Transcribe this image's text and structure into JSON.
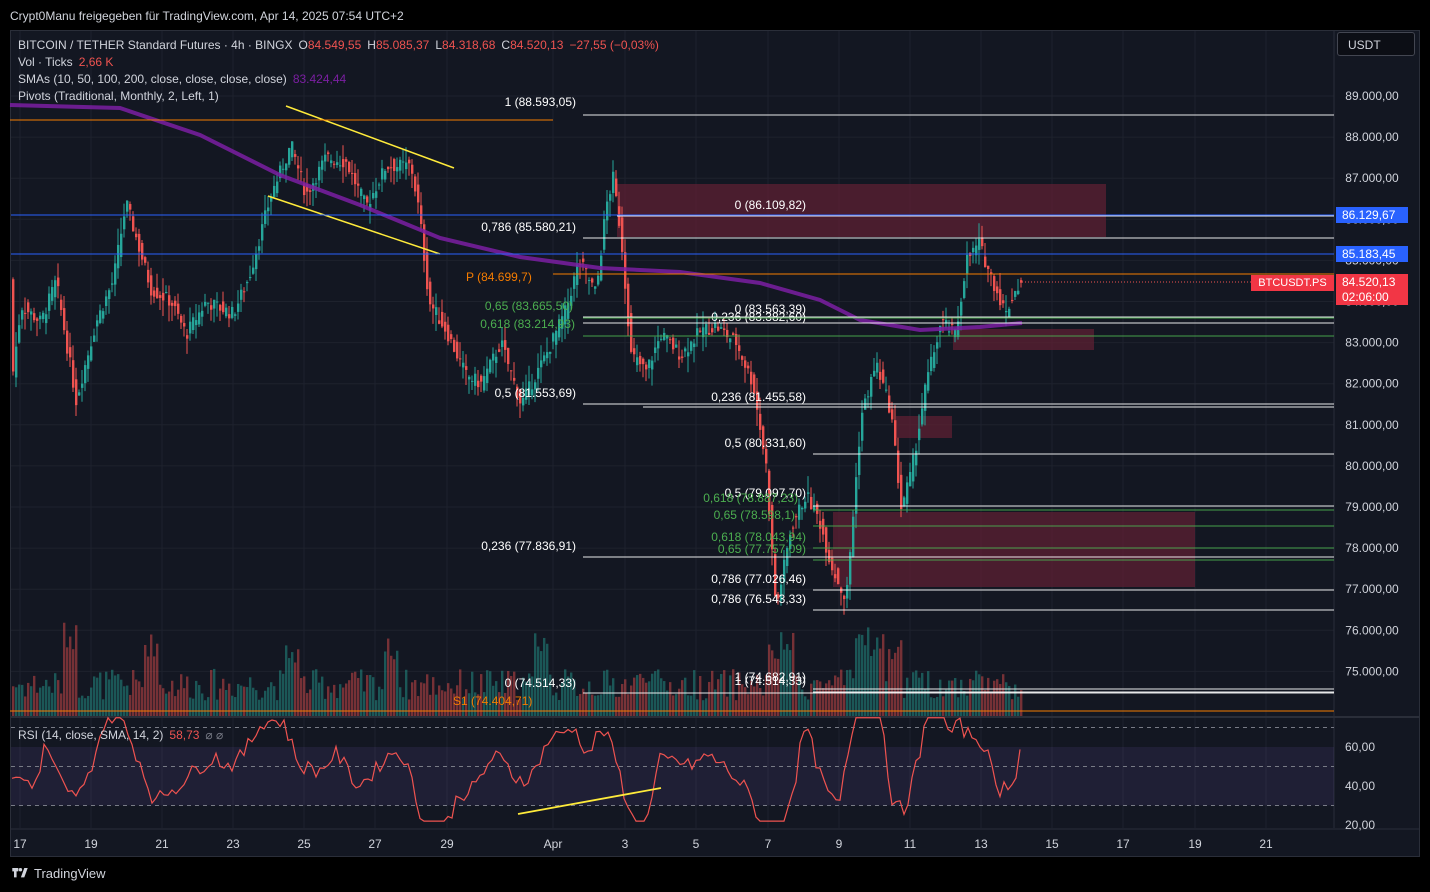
{
  "shared_by": "Crypt0Manu freigegeben für TradingView.com, Apr 14, 2025 07:54 UTC+2",
  "brand": "TradingView",
  "currency_button": "USDT",
  "legend": {
    "symbol": "BITCOIN / TETHER Standard Futures · 4h · BINGX",
    "o_label": "O",
    "o_value": "84.549,55",
    "h_label": "H",
    "h_value": "85.085,37",
    "l_label": "L",
    "l_value": "84.318,68",
    "c_label": "C",
    "c_value": "84.520,13",
    "change": "−27,55 (−0,03%)",
    "vol_label": "Vol · Ticks",
    "vol_value": "2,66 K",
    "sma_label": "SMAs (10, 50, 100, 200, close, close, close, close)",
    "sma_value": "83.424,44",
    "pivots_label": "Pivots (Traditional, Monthly, 2, Left, 1)",
    "rsi_label": "RSI (14, close, SMA, 14, 2)",
    "rsi_value": "58,73",
    "rsi_extra": "⌀ ⌀"
  },
  "price_tags": {
    "blue_high": "86.129,67",
    "blue_low": "85.183,45",
    "symbol_tag": "BTCUSDT.PS",
    "last_price": "84.520,13",
    "countdown": "02:06:00"
  },
  "colors": {
    "up": "#26a69a",
    "down": "#ef5350",
    "background": "#131722",
    "grid": "#1e222d",
    "sma": "#7b1fa2",
    "fib": "#ffffff",
    "fib_green": "#4caf50",
    "pivot": "#f57c00",
    "blue": "#2962ff",
    "trend": "#ffeb3b",
    "zone": "#5d2033"
  },
  "chart_data": {
    "type": "candlestick",
    "price_axis": {
      "ticks": [
        "89.000,00",
        "88.000,00",
        "87.000,00",
        "86.000,00",
        "85.000,00",
        "84.000,00",
        "83.000,00",
        "82.000,00",
        "81.000,00",
        "80.000,00",
        "79.000,00",
        "78.000,00",
        "77.000,00",
        "76.000,00",
        "75.000,00"
      ],
      "ylim": [
        74000,
        89500
      ]
    },
    "rsi_axis": {
      "ticks": [
        "60,00",
        "40,00",
        "20,00"
      ],
      "ylim": [
        20,
        70
      ]
    },
    "x_ticks": [
      "17",
      "19",
      "21",
      "23",
      "25",
      "27",
      "29",
      "Apr",
      "3",
      "5",
      "7",
      "9",
      "11",
      "13",
      "15",
      "17",
      "19",
      "21"
    ],
    "fib_levels": [
      {
        "label": "1 (88.593,05)",
        "price": 88593.05
      },
      {
        "label": "0 (86.109,82)",
        "price": 86109.82
      },
      {
        "label": "0,786 (85.580,21)",
        "price": 85580.21
      },
      {
        "label": "0 (83.563,39)",
        "price": 83563.39
      },
      {
        "label": "0,236 (83.382,60)",
        "price": 83382.6
      },
      {
        "label": "0,65 (83.665,50)",
        "price": 83665.5
      },
      {
        "label": "0,618 (83.214,93)",
        "price": 83214.93
      },
      {
        "label": "0,5 (81.553,69)",
        "price": 81553.69
      },
      {
        "label": "0,236 (81.455,58)",
        "price": 81455.58
      },
      {
        "label": "0,5 (80.331,60)",
        "price": 80331.6
      },
      {
        "label": "0,5 (79.097,70)",
        "price": 79097.7
      },
      {
        "label": "0,618 (78.887,23)",
        "price": 78887.23
      },
      {
        "label": "0,65 (78.598,1)",
        "price": 78598.1
      },
      {
        "label": "0,236 (77.836,91)",
        "price": 77836.91
      },
      {
        "label": "0,618 (78.043,94)",
        "price": 78043.94
      },
      {
        "label": "0,65 (77.757,09)",
        "price": 77757.09
      },
      {
        "label": "0,786 (77.026,46)",
        "price": 77026.46
      },
      {
        "label": "0,786 (76.543,33)",
        "price": 76543.33
      },
      {
        "label": "0 (74.514,33)",
        "price": 74514.33
      },
      {
        "label": "1 (74.682,91)",
        "price": 74682.91
      },
      {
        "label": "1 (74.514,33)",
        "price": 74514.33
      }
    ],
    "pivots": [
      {
        "label": "P (84.699,7)",
        "price": 84699.7
      },
      {
        "label": "S1 (74.404,71)",
        "price": 74404.71
      }
    ],
    "last_price": 84520.13,
    "sma200_last": 83424.44,
    "rsi_last": 58.73
  }
}
